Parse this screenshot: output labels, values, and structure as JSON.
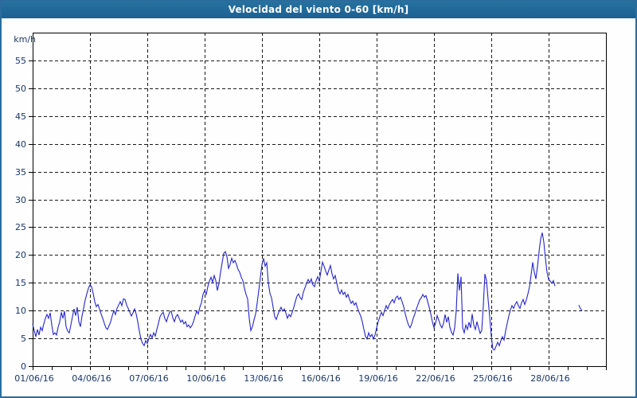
{
  "window": {
    "title": "Velocidad del viento 0-60 [km/h]"
  },
  "colors": {
    "title_bar": "#1f6394",
    "title_text": "#ffffff",
    "frame": "#2b6c9d",
    "background": "#fdfefd",
    "plot_border": "#000000",
    "grid": "#1a1a1a",
    "labels": "#1b3767",
    "line": "#2626c9"
  },
  "chart_data": {
    "type": "line",
    "title": "Velocidad del viento 0-60 [km/h]",
    "y_unit_label": "km/h",
    "xlabel": "",
    "ylabel": "km/h",
    "ylim": [
      0,
      60
    ],
    "x_total_days": 30,
    "grid": "dashed",
    "legend": "none",
    "y_ticks": [
      0,
      5,
      10,
      15,
      20,
      25,
      30,
      35,
      40,
      45,
      50,
      55
    ],
    "x_ticks": [
      {
        "day": 0,
        "label": "01/06/16"
      },
      {
        "day": 3,
        "label": "04/06/16"
      },
      {
        "day": 6,
        "label": "07/06/16"
      },
      {
        "day": 9,
        "label": "10/06/16"
      },
      {
        "day": 12,
        "label": "13/06/16"
      },
      {
        "day": 15,
        "label": "16/06/16"
      },
      {
        "day": 18,
        "label": "19/06/16"
      },
      {
        "day": 21,
        "label": "22/06/16"
      },
      {
        "day": 24,
        "label": "25/06/16"
      },
      {
        "day": 27,
        "label": "28/06/16"
      }
    ],
    "x_minor_tick_every_days": 1,
    "series": [
      {
        "name": "wind-speed-kmh",
        "start_day": 0,
        "step_days": 0.083333,
        "values": [
          7.6,
          6.4,
          5.3,
          6.6,
          5.6,
          7.0,
          6.4,
          7.6,
          8.6,
          9.3,
          8.6,
          9.6,
          7.4,
          5.7,
          6.0,
          5.6,
          7.0,
          8.0,
          9.7,
          8.6,
          9.9,
          7.1,
          6.3,
          6.0,
          7.4,
          8.9,
          10.3,
          9.1,
          10.6,
          8.0,
          7.1,
          9.0,
          10.4,
          11.9,
          13.0,
          14.0,
          14.6,
          14.3,
          13.1,
          11.6,
          10.7,
          11.1,
          10.3,
          9.4,
          8.6,
          7.7,
          6.9,
          6.6,
          7.3,
          8.0,
          9.1,
          10.0,
          9.3,
          10.4,
          11.0,
          11.6,
          10.9,
          12.1,
          12.0,
          11.0,
          10.4,
          9.7,
          9.0,
          9.6,
          10.3,
          9.4,
          8.0,
          6.3,
          4.9,
          4.1,
          3.7,
          4.6,
          4.1,
          5.0,
          5.7,
          5.1,
          6.0,
          5.4,
          6.6,
          7.7,
          8.9,
          9.4,
          9.7,
          8.6,
          8.0,
          8.9,
          9.7,
          9.9,
          8.7,
          8.0,
          8.9,
          9.3,
          8.6,
          7.9,
          8.3,
          7.6,
          8.0,
          7.1,
          7.4,
          6.9,
          7.3,
          8.0,
          9.0,
          9.9,
          9.4,
          10.6,
          11.4,
          12.9,
          13.6,
          12.9,
          14.3,
          15.3,
          16.0,
          15.1,
          16.3,
          15.4,
          13.6,
          14.9,
          16.9,
          18.6,
          20.3,
          20.6,
          19.7,
          17.6,
          18.3,
          19.4,
          18.6,
          19.0,
          18.3,
          17.4,
          16.9,
          16.0,
          15.4,
          14.0,
          12.9,
          12.1,
          8.6,
          6.4,
          7.1,
          8.3,
          9.4,
          11.4,
          13.6,
          16.0,
          18.3,
          19.4,
          18.0,
          18.6,
          15.0,
          13.1,
          12.3,
          10.6,
          8.9,
          8.4,
          9.3,
          10.0,
          10.6,
          9.9,
          10.3,
          9.6,
          8.6,
          9.3,
          8.9,
          9.7,
          10.6,
          11.7,
          12.6,
          13.0,
          12.3,
          12.0,
          13.3,
          14.1,
          14.9,
          15.6,
          15.0,
          15.7,
          14.6,
          14.3,
          15.4,
          16.1,
          15.3,
          17.0,
          18.7,
          18.0,
          17.1,
          16.4,
          17.3,
          18.1,
          16.6,
          15.7,
          16.3,
          14.9,
          13.6,
          13.0,
          13.7,
          12.9,
          13.3,
          12.4,
          12.9,
          12.0,
          11.3,
          11.7,
          11.0,
          11.4,
          10.4,
          9.7,
          9.0,
          8.0,
          6.6,
          5.4,
          4.9,
          6.0,
          5.3,
          5.7,
          4.9,
          5.6,
          6.9,
          8.0,
          8.9,
          9.7,
          9.1,
          10.0,
          10.9,
          10.3,
          11.1,
          11.6,
          12.0,
          11.4,
          12.3,
          12.6,
          12.0,
          12.4,
          11.6,
          10.7,
          9.4,
          8.3,
          7.4,
          6.9,
          7.6,
          8.6,
          9.4,
          10.3,
          11.1,
          11.9,
          12.3,
          12.9,
          12.4,
          12.7,
          11.7,
          10.6,
          9.4,
          8.0,
          6.9,
          7.7,
          9.1,
          8.3,
          7.4,
          6.9,
          7.7,
          9.3,
          7.9,
          8.9,
          7.0,
          6.1,
          5.6,
          6.9,
          10.0,
          16.7,
          13.6,
          16.1,
          6.9,
          6.0,
          7.4,
          6.6,
          7.9,
          6.9,
          9.4,
          7.4,
          6.6,
          8.0,
          6.9,
          5.9,
          6.4,
          10.9,
          16.6,
          15.4,
          12.0,
          8.9,
          5.4,
          3.1,
          2.9,
          3.6,
          4.3,
          3.7,
          4.6,
          5.3,
          4.7,
          6.3,
          7.7,
          9.0,
          10.1,
          10.9,
          10.4,
          11.1,
          11.6,
          10.9,
          10.4,
          11.4,
          12.0,
          11.1,
          11.9,
          13.0,
          14.3,
          16.4,
          18.7,
          16.9,
          15.7,
          17.9,
          20.6,
          22.9,
          24.0,
          22.3,
          19.4,
          16.9,
          15.6,
          15.3,
          14.9,
          15.4,
          14.4
        ]
      },
      {
        "name": "wind-speed-kmh-late-fragment",
        "days": [
          28.58,
          28.67,
          28.75
        ],
        "values": [
          11.0,
          10.3,
          10.0
        ]
      }
    ]
  }
}
